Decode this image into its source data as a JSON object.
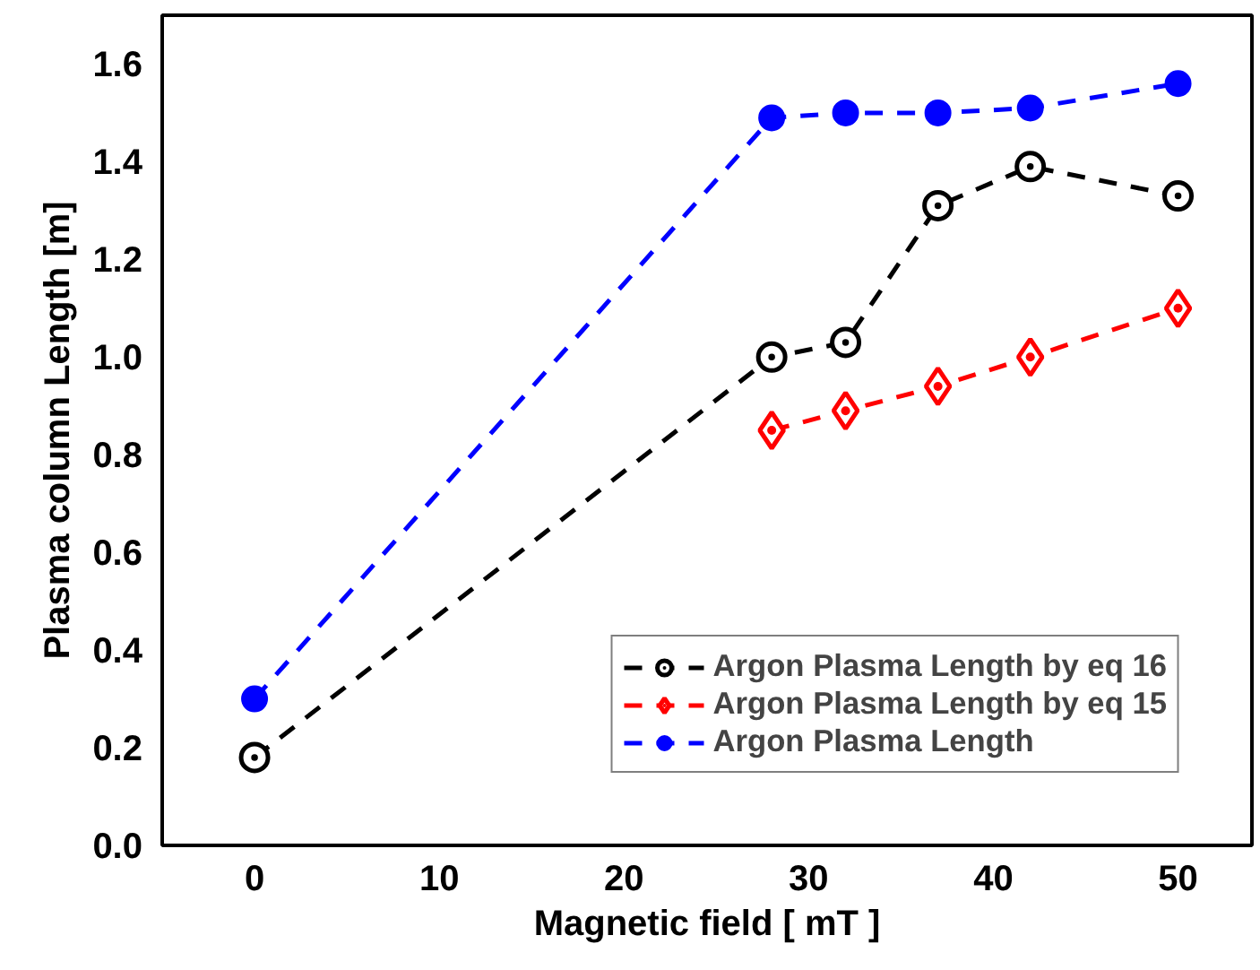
{
  "chart_data": {
    "type": "line",
    "xlabel": "Magnetic field [ mT ]",
    "ylabel": "Plasma column Length [m]",
    "xlim": [
      -5,
      54
    ],
    "ylim": [
      0,
      1.7
    ],
    "xticks": [
      0,
      10,
      20,
      30,
      40,
      50
    ],
    "yticks": [
      {
        "value": 0,
        "label": "0.0"
      },
      0.2,
      0.4,
      0.6,
      0.8,
      {
        "value": 1,
        "label": "1.0"
      },
      1.2,
      1.4,
      1.6
    ],
    "grid": false,
    "legend": "bottom right",
    "line_style": "dashed",
    "series": [
      {
        "name": "Argon Plasma Length by eq 16",
        "color": "#000000",
        "marker": "circle",
        "x": [
          0,
          28,
          32,
          37,
          42,
          50
        ],
        "values": [
          0.18,
          1.0,
          1.03,
          1.31,
          1.39,
          1.33
        ]
      },
      {
        "name": "Argon Plasma Length by eq 15",
        "color": "#ff0000",
        "marker": "diamond",
        "x": [
          28,
          32,
          37,
          42,
          50
        ],
        "values": [
          0.85,
          0.89,
          0.94,
          1.0,
          1.1
        ]
      },
      {
        "name": "Argon Plasma Length",
        "color": "#0000ff",
        "marker": "filled_circle",
        "x": [
          0,
          28,
          32,
          37,
          42,
          50
        ],
        "values": [
          0.3,
          1.49,
          1.5,
          1.5,
          1.51,
          1.56
        ]
      }
    ]
  }
}
